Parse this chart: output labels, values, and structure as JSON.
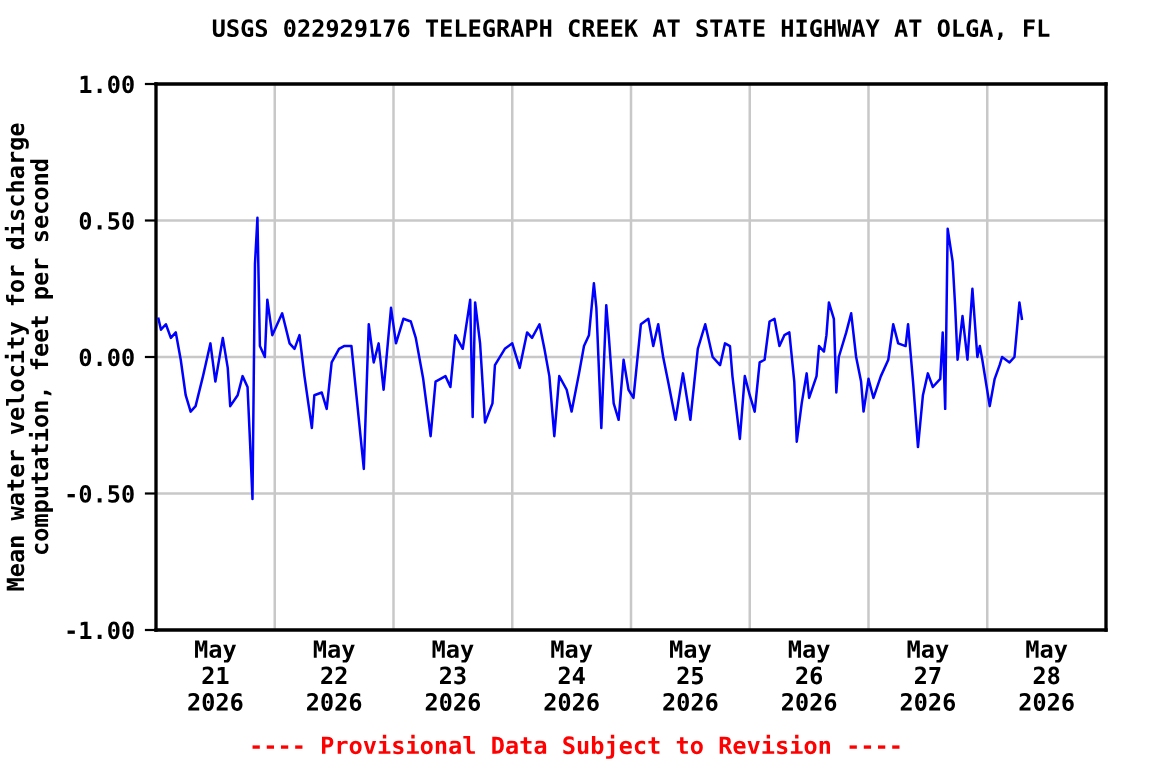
{
  "chart_data": {
    "type": "line",
    "title": "USGS 022929176 TELEGRAPH CREEK AT STATE HIGHWAY AT OLGA, FL",
    "ylabel": "Mean water velocity for discharge\ncomputation, feet per second",
    "annotations": [
      "---- Provisional Data Subject to Revision ----"
    ],
    "xlim": [
      "2026-05-21T00:00",
      "2026-05-29T00:00"
    ],
    "xticks": [
      {
        "value": "2026-05-21T12:00",
        "label": "May\n21\n2026"
      },
      {
        "value": "2026-05-22T00:00",
        "label": null
      },
      {
        "value": "2026-05-22T12:00",
        "label": "May\n22\n2026"
      },
      {
        "value": "2026-05-23T00:00",
        "label": null
      },
      {
        "value": "2026-05-23T12:00",
        "label": "May\n23\n2026"
      },
      {
        "value": "2026-05-24T00:00",
        "label": null
      },
      {
        "value": "2026-05-24T12:00",
        "label": "May\n24\n2026"
      },
      {
        "value": "2026-05-25T00:00",
        "label": null
      },
      {
        "value": "2026-05-25T12:00",
        "label": "May\n25\n2026"
      },
      {
        "value": "2026-05-26T00:00",
        "label": null
      },
      {
        "value": "2026-05-26T12:00",
        "label": "May\n26\n2026"
      },
      {
        "value": "2026-05-27T00:00",
        "label": null
      },
      {
        "value": "2026-05-27T12:00",
        "label": "May\n27\n2026"
      },
      {
        "value": "2026-05-28T00:00",
        "label": null
      },
      {
        "value": "2026-05-28T12:00",
        "label": "May\n28\n2026"
      }
    ],
    "ylim": [
      -1,
      1
    ],
    "yticks": [
      {
        "value": 1,
        "label": "1.00"
      },
      {
        "value": 0.5,
        "label": "0.50"
      },
      {
        "value": 0,
        "label": "0.00"
      },
      {
        "value": -0.5,
        "label": "-0.50"
      },
      {
        "value": -1,
        "label": "-1.00"
      }
    ],
    "grid": true,
    "legend": false,
    "series": [
      {
        "color": "#0000ff",
        "x": [
          "2026-05-21T00:30",
          "2026-05-21T01:00",
          "2026-05-21T02:00",
          "2026-05-21T03:00",
          "2026-05-21T04:00",
          "2026-05-21T05:00",
          "2026-05-21T06:00",
          "2026-05-21T07:00",
          "2026-05-21T08:00",
          "2026-05-21T09:30",
          "2026-05-21T10:00",
          "2026-05-21T11:00",
          "2026-05-21T12:00",
          "2026-05-21T13:30",
          "2026-05-21T14:30",
          "2026-05-21T15:00",
          "2026-05-21T16:30",
          "2026-05-21T17:30",
          "2026-05-21T18:30",
          "2026-05-21T19:00",
          "2026-05-21T19:30",
          "2026-05-21T20:00",
          "2026-05-21T20:30",
          "2026-05-21T21:00",
          "2026-05-21T22:00",
          "2026-05-21T22:30",
          "2026-05-21T23:30",
          "2026-05-22T00:30",
          "2026-05-22T01:30",
          "2026-05-22T03:00",
          "2026-05-22T04:00",
          "2026-05-22T05:00",
          "2026-05-22T06:00",
          "2026-05-22T07:30",
          "2026-05-22T08:00",
          "2026-05-22T09:30",
          "2026-05-22T10:30",
          "2026-05-22T11:30",
          "2026-05-22T13:00",
          "2026-05-22T14:00",
          "2026-05-22T15:30",
          "2026-05-22T16:30",
          "2026-05-22T18:00",
          "2026-05-22T19:00",
          "2026-05-22T20:00",
          "2026-05-22T21:00",
          "2026-05-22T22:00",
          "2026-05-22T23:30",
          "2026-05-23T00:30",
          "2026-05-23T02:00",
          "2026-05-23T03:30",
          "2026-05-23T04:30",
          "2026-05-23T06:00",
          "2026-05-23T07:30",
          "2026-05-23T08:30",
          "2026-05-23T10:30",
          "2026-05-23T11:30",
          "2026-05-23T12:30",
          "2026-05-23T14:00",
          "2026-05-23T15:30",
          "2026-05-23T16:00",
          "2026-05-23T16:30",
          "2026-05-23T17:30",
          "2026-05-23T18:30",
          "2026-05-23T20:00",
          "2026-05-23T20:30",
          "2026-05-23T22:30",
          "2026-05-24T00:00",
          "2026-05-24T01:30",
          "2026-05-24T03:00",
          "2026-05-24T04:00",
          "2026-05-24T05:30",
          "2026-05-24T06:30",
          "2026-05-24T07:30",
          "2026-05-24T08:30",
          "2026-05-24T09:30",
          "2026-05-24T11:00",
          "2026-05-24T12:00",
          "2026-05-24T13:30",
          "2026-05-24T14:30",
          "2026-05-24T15:30",
          "2026-05-24T16:30",
          "2026-05-24T17:00",
          "2026-05-24T18:00",
          "2026-05-24T19:00",
          "2026-05-24T19:30",
          "2026-05-24T20:30",
          "2026-05-24T21:30",
          "2026-05-24T22:30",
          "2026-05-24T23:30",
          "2026-05-25T00:30",
          "2026-05-25T02:00",
          "2026-05-25T03:30",
          "2026-05-25T04:30",
          "2026-05-25T05:30",
          "2026-05-25T06:30",
          "2026-05-25T07:30",
          "2026-05-25T09:00",
          "2026-05-25T10:30",
          "2026-05-25T12:00",
          "2026-05-25T13:30",
          "2026-05-25T15:00",
          "2026-05-25T16:30",
          "2026-05-25T18:00",
          "2026-05-25T19:00",
          "2026-05-25T20:00",
          "2026-05-25T20:30",
          "2026-05-25T22:00",
          "2026-05-25T23:00",
          "2026-05-26T00:00",
          "2026-05-26T01:00",
          "2026-05-26T02:00",
          "2026-05-26T03:00",
          "2026-05-26T04:00",
          "2026-05-26T05:00",
          "2026-05-26T06:00",
          "2026-05-26T07:00",
          "2026-05-26T08:00",
          "2026-05-26T09:00",
          "2026-05-26T09:30",
          "2026-05-26T10:30",
          "2026-05-26T11:30",
          "2026-05-26T12:00",
          "2026-05-26T13:30",
          "2026-05-26T14:00",
          "2026-05-26T15:00",
          "2026-05-26T15:30",
          "2026-05-26T16:00",
          "2026-05-26T17:00",
          "2026-05-26T17:30",
          "2026-05-26T18:00",
          "2026-05-26T19:30",
          "2026-05-26T20:30",
          "2026-05-26T21:30",
          "2026-05-26T22:30",
          "2026-05-26T23:00",
          "2026-05-27T00:00",
          "2026-05-27T01:00",
          "2026-05-27T02:30",
          "2026-05-27T04:00",
          "2026-05-27T05:00",
          "2026-05-27T06:00",
          "2026-05-27T07:30",
          "2026-05-27T08:00",
          "2026-05-27T09:00",
          "2026-05-27T10:00",
          "2026-05-27T11:00",
          "2026-05-27T12:00",
          "2026-05-27T13:00",
          "2026-05-27T14:30",
          "2026-05-27T15:00",
          "2026-05-27T15:30",
          "2026-05-27T16:00",
          "2026-05-27T17:00",
          "2026-05-27T17:30",
          "2026-05-27T18:00",
          "2026-05-27T19:00",
          "2026-05-27T20:00",
          "2026-05-27T21:00",
          "2026-05-27T22:00",
          "2026-05-27T22:30",
          "2026-05-27T23:00",
          "2026-05-28T00:30",
          "2026-05-28T01:30",
          "2026-05-28T02:30",
          "2026-05-28T03:00",
          "2026-05-28T04:30",
          "2026-05-28T05:30",
          "2026-05-28T06:30",
          "2026-05-28T07:00"
        ],
        "values": [
          0.14,
          0.1,
          0.12,
          0.07,
          0.09,
          -0.01,
          -0.14,
          -0.2,
          -0.18,
          -0.07,
          -0.03,
          0.05,
          -0.09,
          0.07,
          -0.04,
          -0.18,
          -0.14,
          -0.07,
          -0.11,
          -0.31,
          -0.52,
          0.34,
          0.51,
          0.04,
          0.0,
          0.21,
          0.08,
          0.12,
          0.16,
          0.05,
          0.03,
          0.08,
          -0.07,
          -0.26,
          -0.14,
          -0.13,
          -0.19,
          -0.02,
          0.03,
          0.04,
          0.04,
          -0.14,
          -0.41,
          0.12,
          -0.02,
          0.05,
          -0.12,
          0.18,
          0.05,
          0.14,
          0.13,
          0.07,
          -0.08,
          -0.29,
          -0.09,
          -0.07,
          -0.11,
          0.08,
          0.03,
          0.21,
          -0.22,
          0.2,
          0.05,
          -0.24,
          -0.17,
          -0.03,
          0.03,
          0.05,
          -0.04,
          0.09,
          0.07,
          0.12,
          0.03,
          -0.07,
          -0.29,
          -0.07,
          -0.12,
          -0.2,
          -0.06,
          0.04,
          0.08,
          0.27,
          0.18,
          -0.26,
          0.19,
          0.08,
          -0.17,
          -0.23,
          -0.01,
          -0.12,
          -0.15,
          0.12,
          0.14,
          0.04,
          0.12,
          0.0,
          -0.09,
          -0.23,
          -0.06,
          -0.23,
          0.03,
          0.12,
          0.0,
          -0.03,
          0.05,
          0.04,
          -0.07,
          -0.3,
          -0.07,
          -0.14,
          -0.2,
          -0.02,
          -0.01,
          0.13,
          0.14,
          0.04,
          0.08,
          0.09,
          -0.09,
          -0.31,
          -0.17,
          -0.06,
          -0.15,
          -0.07,
          0.04,
          0.02,
          0.08,
          0.2,
          0.14,
          -0.13,
          0.0,
          0.09,
          0.16,
          0.0,
          -0.09,
          -0.2,
          -0.08,
          -0.15,
          -0.07,
          -0.01,
          0.12,
          0.05,
          0.04,
          0.12,
          -0.09,
          -0.33,
          -0.14,
          -0.06,
          -0.11,
          -0.08,
          0.09,
          -0.19,
          0.47,
          0.35,
          0.19,
          -0.01,
          0.15,
          -0.01,
          0.25,
          0.0,
          0.04,
          -0.01,
          -0.18,
          -0.08,
          -0.03,
          0.0,
          -0.02,
          0.0,
          0.2,
          0.14
        ]
      }
    ]
  }
}
